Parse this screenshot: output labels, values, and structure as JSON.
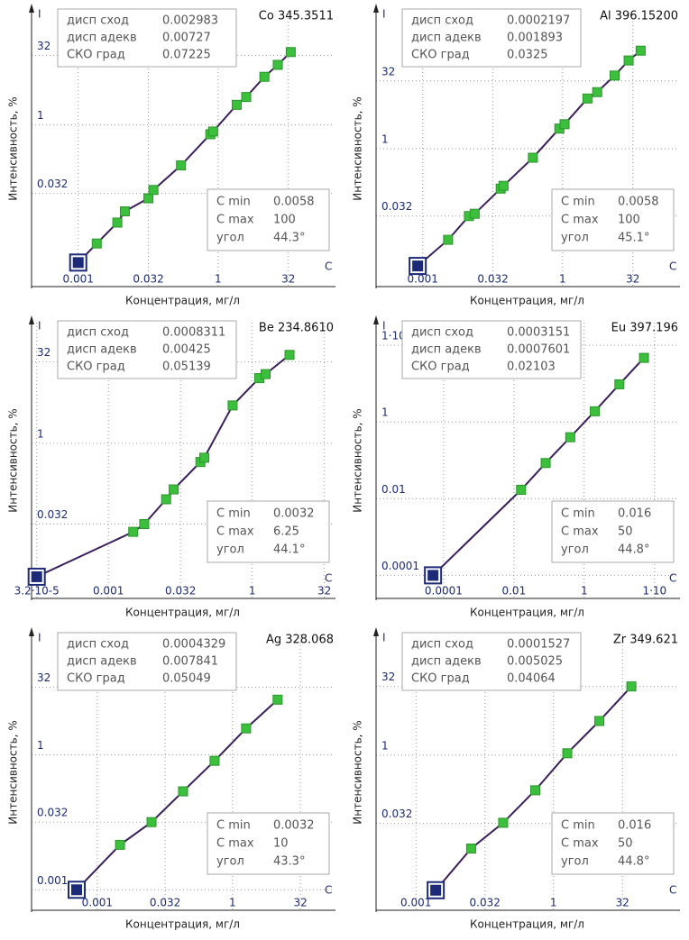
{
  "chart_data": [
    {
      "type": "scatter",
      "title": "Co 345.3511",
      "xlabel": "Концентрация, мг/л",
      "ylabel": "Интенсивность, %",
      "x_axis_letter": "C",
      "y_axis_letter": "I",
      "log_x": true,
      "log_y": true,
      "grid": true,
      "color": "#3cbf3c",
      "line_color": "#3a1f5c",
      "anchor_color": "#1c2a78",
      "xlim": [
        0.0001,
        300
      ],
      "ylim": [
        0.0003,
        300
      ],
      "xticks": [
        0.001,
        0.032,
        1,
        32
      ],
      "yticks": [
        0.032,
        1,
        32
      ],
      "x": [
        0.0025,
        0.0069,
        0.01,
        0.032,
        0.041,
        0.16,
        0.68,
        0.78,
        2.5,
        4.0,
        9.8,
        19,
        36
      ],
      "values": [
        0.0026,
        0.0074,
        0.013,
        0.025,
        0.038,
        0.13,
        0.62,
        0.71,
        2.7,
        4.0,
        11,
        20,
        38
      ],
      "anchor": {
        "x": 0.001,
        "y": 0.001
      },
      "stats": [
        {
          "label": "дисп сход",
          "value": "0.002983"
        },
        {
          "label": "дисп адекв",
          "value": "0.00727"
        },
        {
          "label": "СКО град",
          "value": "0.07225"
        }
      ],
      "range_box": [
        {
          "label": "C min",
          "value": "0.0058"
        },
        {
          "label": "C max",
          "value": "100"
        },
        {
          "label": "угол",
          "value": "44.3°"
        }
      ]
    },
    {
      "type": "scatter",
      "title": "Al 396.15200",
      "xlabel": "Концентрация, мг/л",
      "ylabel": "Интенсивность, %",
      "x_axis_letter": "C",
      "y_axis_letter": "I",
      "log_x": true,
      "log_y": true,
      "grid": true,
      "color": "#3cbf3c",
      "line_color": "#3a1f5c",
      "anchor_color": "#1c2a78",
      "xlim": [
        0.0001,
        300
      ],
      "ylim": [
        0.00087,
        1150
      ],
      "xticks": [
        0.001,
        0.032,
        1,
        32
      ],
      "yticks": [
        0.032,
        1,
        32
      ],
      "x": [
        0.0035,
        0.0098,
        0.013,
        0.047,
        0.054,
        0.23,
        0.85,
        1.1,
        3.4,
        5.5,
        13,
        26,
        47
      ],
      "values": [
        0.0095,
        0.032,
        0.036,
        0.13,
        0.15,
        0.63,
        2.8,
        3.5,
        13,
        18,
        42,
        91,
        150
      ],
      "anchor": {
        "x": 0.00078,
        "y": 0.0025
      },
      "stats": [
        {
          "label": "дисп сход",
          "value": "0.0002197"
        },
        {
          "label": "дисп адекв",
          "value": "0.001893"
        },
        {
          "label": "СКО град",
          "value": "0.0325"
        }
      ],
      "range_box": [
        {
          "label": "C min",
          "value": "0.0058"
        },
        {
          "label": "C max",
          "value": "100"
        },
        {
          "label": "угол",
          "value": "45.1°"
        }
      ]
    },
    {
      "type": "scatter",
      "title": "Be 234.8610",
      "xlabel": "Концентрация, мг/л",
      "ylabel": "Интенсивность, %",
      "x_axis_letter": "C",
      "y_axis_letter": "I",
      "log_x": true,
      "log_y": true,
      "grid": true,
      "color": "#3cbf3c",
      "line_color": "#3a1f5c",
      "anchor_color": "#1c2a78",
      "xlim": [
        2.5e-05,
        50
      ],
      "ylim": [
        0.00135,
        170
      ],
      "xticks": [
        {
          "value": 3.2e-05,
          "label": "3.2·10-5"
        },
        0.001,
        0.032,
        1,
        32
      ],
      "yticks": [
        0.032,
        1,
        32
      ],
      "x": [
        0.0033,
        0.0056,
        0.016,
        0.023,
        0.083,
        0.1,
        0.39,
        1.4,
        1.9,
        6.0
      ],
      "values": [
        0.023,
        0.032,
        0.092,
        0.14,
        0.45,
        0.54,
        5.0,
        16,
        19,
        43
      ],
      "anchor": {
        "x": 3.2e-05,
        "y": 0.0034
      },
      "stats": [
        {
          "label": "дисп сход",
          "value": "0.0008311"
        },
        {
          "label": "дисп адекв",
          "value": "0.00425"
        },
        {
          "label": "СКО град",
          "value": "0.05139"
        }
      ],
      "range_box": [
        {
          "label": "C min",
          "value": "0.0032"
        },
        {
          "label": "C max",
          "value": "6.25"
        },
        {
          "label": "угол",
          "value": "44.1°"
        }
      ]
    },
    {
      "type": "scatter",
      "title": "Eu 397.196",
      "xlabel": "Концентрация, мг/л",
      "ylabel": "Интенсивность, %",
      "x_axis_letter": "C",
      "y_axis_letter": "I",
      "log_x": true,
      "log_y": true,
      "grid": true,
      "color": "#3cbf3c",
      "line_color": "#3a1f5c",
      "anchor_color": "#1c2a78",
      "xlim": [
        1.2e-06,
        470
      ],
      "ylim": [
        2.5e-05,
        390
      ],
      "xticks": [
        0.0001,
        0.01,
        1,
        {
          "value": 100,
          "label": "1·10"
        }
      ],
      "yticks": [
        0.0001,
        0.01,
        1,
        {
          "value": 100,
          "label": "1·10+2"
        }
      ],
      "x": [
        0.016,
        0.08,
        0.4,
        2,
        10,
        50
      ],
      "values": [
        0.017,
        0.085,
        0.4,
        1.9,
        9.6,
        47
      ],
      "anchor": {
        "x": 5e-05,
        "y": 0.0001
      },
      "stats": [
        {
          "label": "дисп сход",
          "value": "0.0003151"
        },
        {
          "label": "дисп адекв",
          "value": "0.0007601"
        },
        {
          "label": "СКО град",
          "value": "0.02103"
        }
      ],
      "range_box": [
        {
          "label": "C min",
          "value": "0.016"
        },
        {
          "label": "C max",
          "value": "50"
        },
        {
          "label": "угол",
          "value": "44.8°"
        }
      ]
    },
    {
      "type": "scatter",
      "title": "Ag 328.068",
      "xlabel": "Концентрация, мг/л",
      "ylabel": "Интенсивность, %",
      "x_axis_letter": "C",
      "y_axis_letter": "I",
      "log_x": true,
      "log_y": true,
      "grid": true,
      "color": "#3cbf3c",
      "line_color": "#3a1f5c",
      "anchor_color": "#1c2a78",
      "xlim": [
        3.5e-05,
        175
      ],
      "ylim": [
        0.00035,
        480
      ],
      "xticks": [
        0.001,
        0.032,
        1,
        32
      ],
      "yticks": [
        0.001,
        0.032,
        1,
        32
      ],
      "x": [
        0.0032,
        0.016,
        0.08,
        0.4,
        2,
        10
      ],
      "values": [
        0.01,
        0.032,
        0.155,
        0.74,
        3.9,
        17
      ],
      "anchor": {
        "x": 0.00035,
        "y": 0.001
      },
      "stats": [
        {
          "label": "дисп сход",
          "value": "0.0004329"
        },
        {
          "label": "дисп адекв",
          "value": "0.007841"
        },
        {
          "label": "СКО град",
          "value": "0.05049"
        }
      ],
      "range_box": [
        {
          "label": "C min",
          "value": "0.0032"
        },
        {
          "label": "C max",
          "value": "10"
        },
        {
          "label": "угол",
          "value": "43.3°"
        }
      ]
    },
    {
      "type": "scatter",
      "title": "Zr 349.621",
      "xlabel": "Концентрация, мг/л",
      "ylabel": "Интенсивность, %",
      "x_axis_letter": "C",
      "y_axis_letter": "I",
      "log_x": true,
      "log_y": true,
      "grid": true,
      "color": "#3cbf3c",
      "line_color": "#3a1f5c",
      "anchor_color": "#1c2a78",
      "xlim": [
        0.000135,
        525
      ],
      "ylim": [
        0.0004,
        440
      ],
      "xticks": [
        0.001,
        0.032,
        1,
        32
      ],
      "yticks": [
        0.032,
        1,
        32
      ],
      "x": [
        0.016,
        0.08,
        0.4,
        2,
        10,
        50
      ],
      "values": [
        0.009,
        0.033,
        0.17,
        1.1,
        5.6,
        32
      ],
      "anchor": {
        "x": 0.0027,
        "y": 0.0011
      },
      "stats": [
        {
          "label": "дисп сход",
          "value": "0.0001527"
        },
        {
          "label": "дисп адекв",
          "value": "0.005025"
        },
        {
          "label": "СКО град",
          "value": "0.04064"
        }
      ],
      "range_box": [
        {
          "label": "C min",
          "value": "0.016"
        },
        {
          "label": "C max",
          "value": "50"
        },
        {
          "label": "угол",
          "value": "44.8°"
        }
      ]
    }
  ]
}
